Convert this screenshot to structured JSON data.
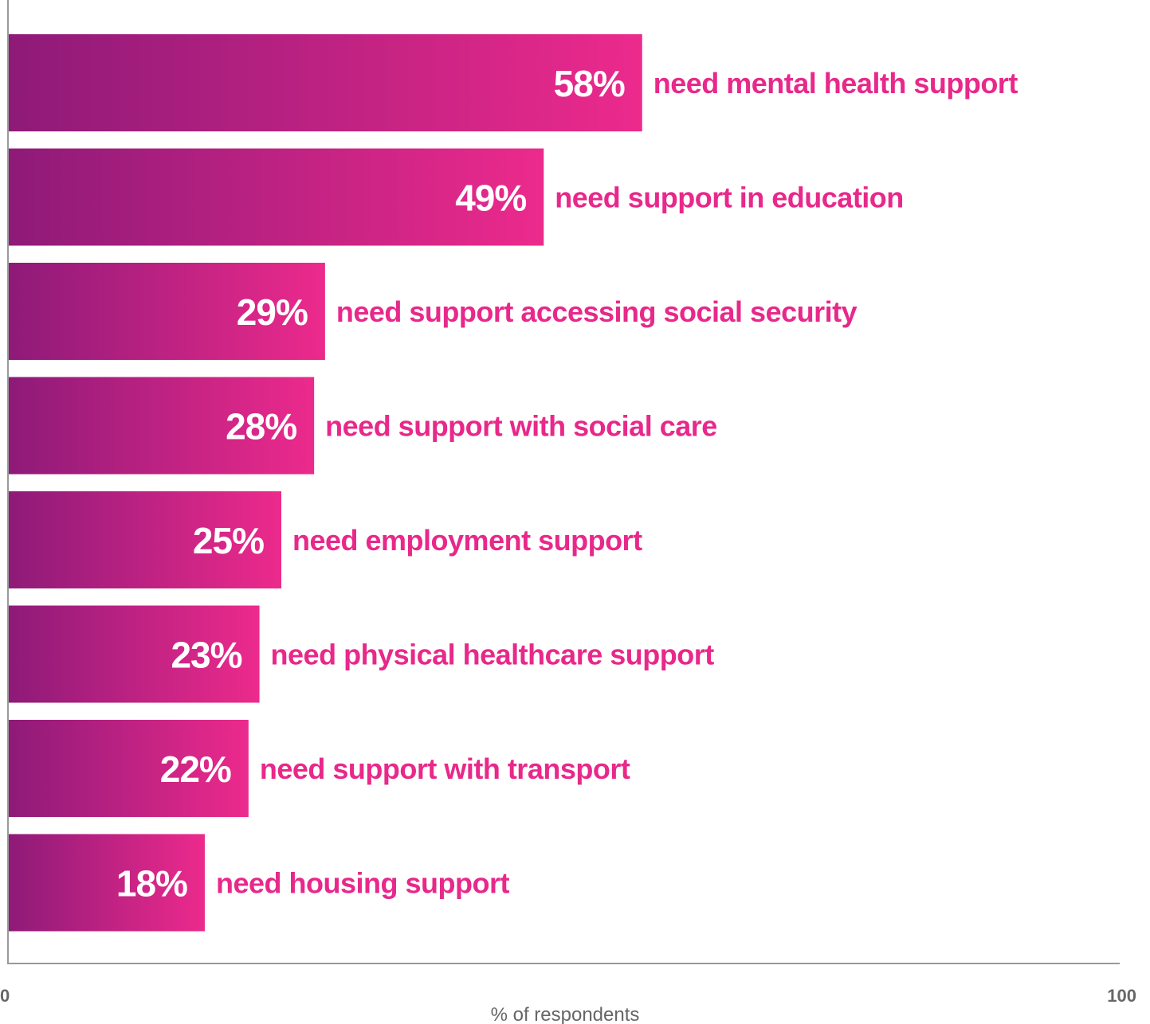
{
  "chart_data": {
    "type": "bar",
    "orientation": "horizontal",
    "categories": [
      "need mental health support",
      "need support in education",
      "need support accessing social security",
      "need support with social care",
      "need employment support",
      "need physical healthcare support",
      "need support with transport",
      "need housing support"
    ],
    "values": [
      58,
      49,
      29,
      28,
      25,
      23,
      22,
      18
    ],
    "value_labels": [
      "58%",
      "49%",
      "29%",
      "28%",
      "25%",
      "23%",
      "22%",
      "18%"
    ],
    "xlabel": "% of respondents",
    "xlim": [
      0,
      100
    ],
    "x_ticks": [
      "0",
      "100"
    ],
    "grid": false,
    "legend": "none"
  },
  "colors": {
    "bar_gradient_start": "#8e1a78",
    "bar_gradient_end": "#ec2a8c",
    "label": "#e8288a",
    "value_text": "#ffffff",
    "axis": "#999999",
    "axis_text": "#666666"
  }
}
